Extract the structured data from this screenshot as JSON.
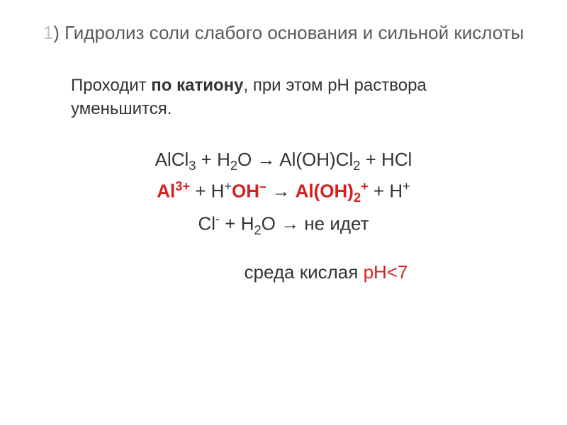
{
  "title": {
    "number": "1",
    "text_prefix": ") ",
    "text": "Гидролиз соли слабого основания и сильной кислоты"
  },
  "subtitle": {
    "part1": "Проходит ",
    "bold": "по катиону",
    "part2": ", при этом рН раствора уменьшится."
  },
  "equations": {
    "line1": {
      "reactant1": "AlCl",
      "reactant1_sub": "3",
      "plus1": " + H",
      "h2o_sub": "2",
      "h2o_o": "O → Al(OH)Cl",
      "prod_sub": "2",
      "plus2": " + HCl"
    },
    "line2": {
      "al": "Al",
      "al_charge": "3+",
      "plus1": " + ",
      "h": "H",
      "h_charge": "+",
      "oh": "OH",
      "oh_charge": "–",
      "arrow": " → ",
      "aloh": "Al(OH)",
      "aloh_sub": "2",
      "aloh_charge": "+",
      "plus2": " + H",
      "h2_charge": "+"
    },
    "line3": {
      "cl": "Cl",
      "cl_charge": "-",
      "plus": " + H",
      "h2o_sub": "2",
      "rest": "O → не идет"
    }
  },
  "conclusion": {
    "text1": "среда кислая ",
    "ph1": "рН",
    "lt": "<",
    "ph2": "7"
  },
  "colors": {
    "title_gray": "#5a5a5a",
    "number_gray": "#c0c0c0",
    "text_black": "#333333",
    "red": "#d62020",
    "background": "#ffffff"
  },
  "typography": {
    "title_fontsize": 26,
    "subtitle_fontsize": 24,
    "equation_fontsize": 26,
    "conclusion_fontsize": 26,
    "font_family": "Arial"
  }
}
